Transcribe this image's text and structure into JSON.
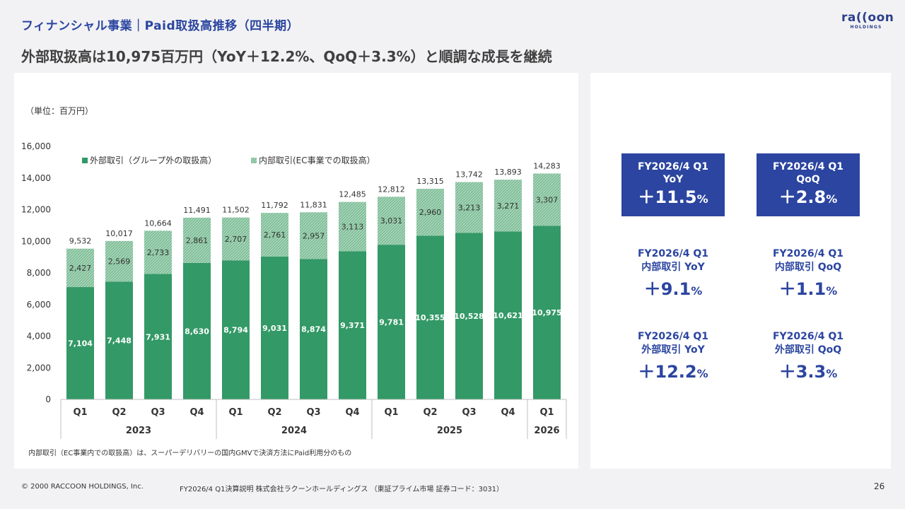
{
  "header": {
    "section_title": "フィナンシャル事業｜Paid取扱高推移（四半期）",
    "headline": "外部取扱高は10,975百万円（YoY＋12.2%、QoQ＋3.3%）と順調な成長を継続",
    "logo_text": "ra((oon",
    "logo_sub": "HOLDINGS"
  },
  "chart_data": {
    "type": "bar",
    "stacked": true,
    "unit_label": "（単位：百万円）",
    "categories": [
      "Q1",
      "Q2",
      "Q3",
      "Q4",
      "Q1",
      "Q2",
      "Q3",
      "Q4",
      "Q1",
      "Q2",
      "Q3",
      "Q4",
      "Q1"
    ],
    "year_groups": [
      {
        "label": "2023",
        "count": 4
      },
      {
        "label": "2024",
        "count": 4
      },
      {
        "label": "2025",
        "count": 4
      },
      {
        "label": "2026",
        "count": 1
      }
    ],
    "series": [
      {
        "name": "外部取引（グループ外の取扱高）",
        "color": "#339966",
        "values": [
          7104,
          7448,
          7931,
          8630,
          8794,
          9031,
          8874,
          9371,
          9781,
          10355,
          10528,
          10621,
          10975
        ]
      },
      {
        "name": "内部取引(EC事業での取扱高）",
        "color": "#a9d4b9",
        "values": [
          2427,
          2569,
          2733,
          2861,
          2707,
          2761,
          2957,
          3113,
          3031,
          2960,
          3213,
          3271,
          3307
        ]
      }
    ],
    "totals": [
      9532,
      10017,
      10664,
      11491,
      11502,
      11792,
      11831,
      12485,
      12812,
      13315,
      13742,
      13893,
      14283
    ],
    "ylim": [
      0,
      16000
    ],
    "yticks": [
      0,
      2000,
      4000,
      6000,
      8000,
      10000,
      12000,
      14000,
      16000
    ],
    "legend_position": "top-left",
    "grid": false
  },
  "footnote": "内部取引（EC事業内での取扱高）は、スーパーデリバリーの国内GMVで決済方法にPaid利用分のもの",
  "kpis": {
    "total_yoy": {
      "line1": "FY2026/4 Q1",
      "line2": "YoY",
      "value": "＋11.5",
      "unit": "%"
    },
    "total_qoq": {
      "line1": "FY2026/4 Q1",
      "line2": "QoQ",
      "value": "＋2.8",
      "unit": "%"
    },
    "internal_yoy": {
      "line1": "FY2026/4 Q1",
      "line2": "内部取引 YoY",
      "value": "＋9.1",
      "unit": "%"
    },
    "internal_qoq": {
      "line1": "FY2026/4 Q1",
      "line2": "内部取引 QoQ",
      "value": "＋1.1",
      "unit": "%"
    },
    "external_yoy": {
      "line1": "FY2026/4 Q1",
      "line2": "外部取引 YoY",
      "value": "＋12.2",
      "unit": "%"
    },
    "external_qoq": {
      "line1": "FY2026/4 Q1",
      "line2": "外部取引 QoQ",
      "value": "＋3.3",
      "unit": "%"
    }
  },
  "footer": {
    "copyright": "© 2000 RACCOON HOLDINGS, Inc.",
    "document": "FY2026/4 Q1決算説明 株式会社ラクーンホールディングス （東証プライム市場 証券コード：3031）",
    "page_number": "26"
  }
}
